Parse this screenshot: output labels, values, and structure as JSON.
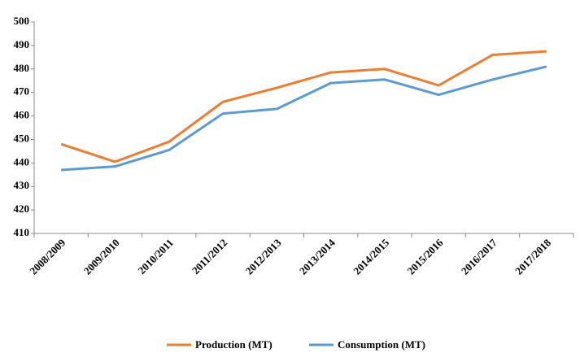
{
  "chart_data": {
    "type": "line",
    "categories": [
      "2008/2009",
      "2009/2010",
      "2010/2011",
      "2011/2012",
      "2012/2013",
      "2013/2014",
      "2014/2015",
      "2015/2016",
      "2016/2017",
      "2017/2018"
    ],
    "series": [
      {
        "name": "Production (MT)",
        "color": "#ed7d31",
        "values": [
          448,
          440.5,
          449,
          466,
          472,
          478.5,
          480,
          473,
          486,
          487.5
        ]
      },
      {
        "name": "Consumption (MT)",
        "color": "#5b9bd5",
        "values": [
          437,
          438.5,
          445.5,
          461,
          463,
          474,
          475.5,
          469,
          475.5,
          481
        ]
      }
    ],
    "ylim": [
      410,
      500
    ],
    "yticks": [
      410,
      420,
      430,
      440,
      450,
      460,
      470,
      480,
      490,
      500
    ],
    "legend": "bottom"
  }
}
